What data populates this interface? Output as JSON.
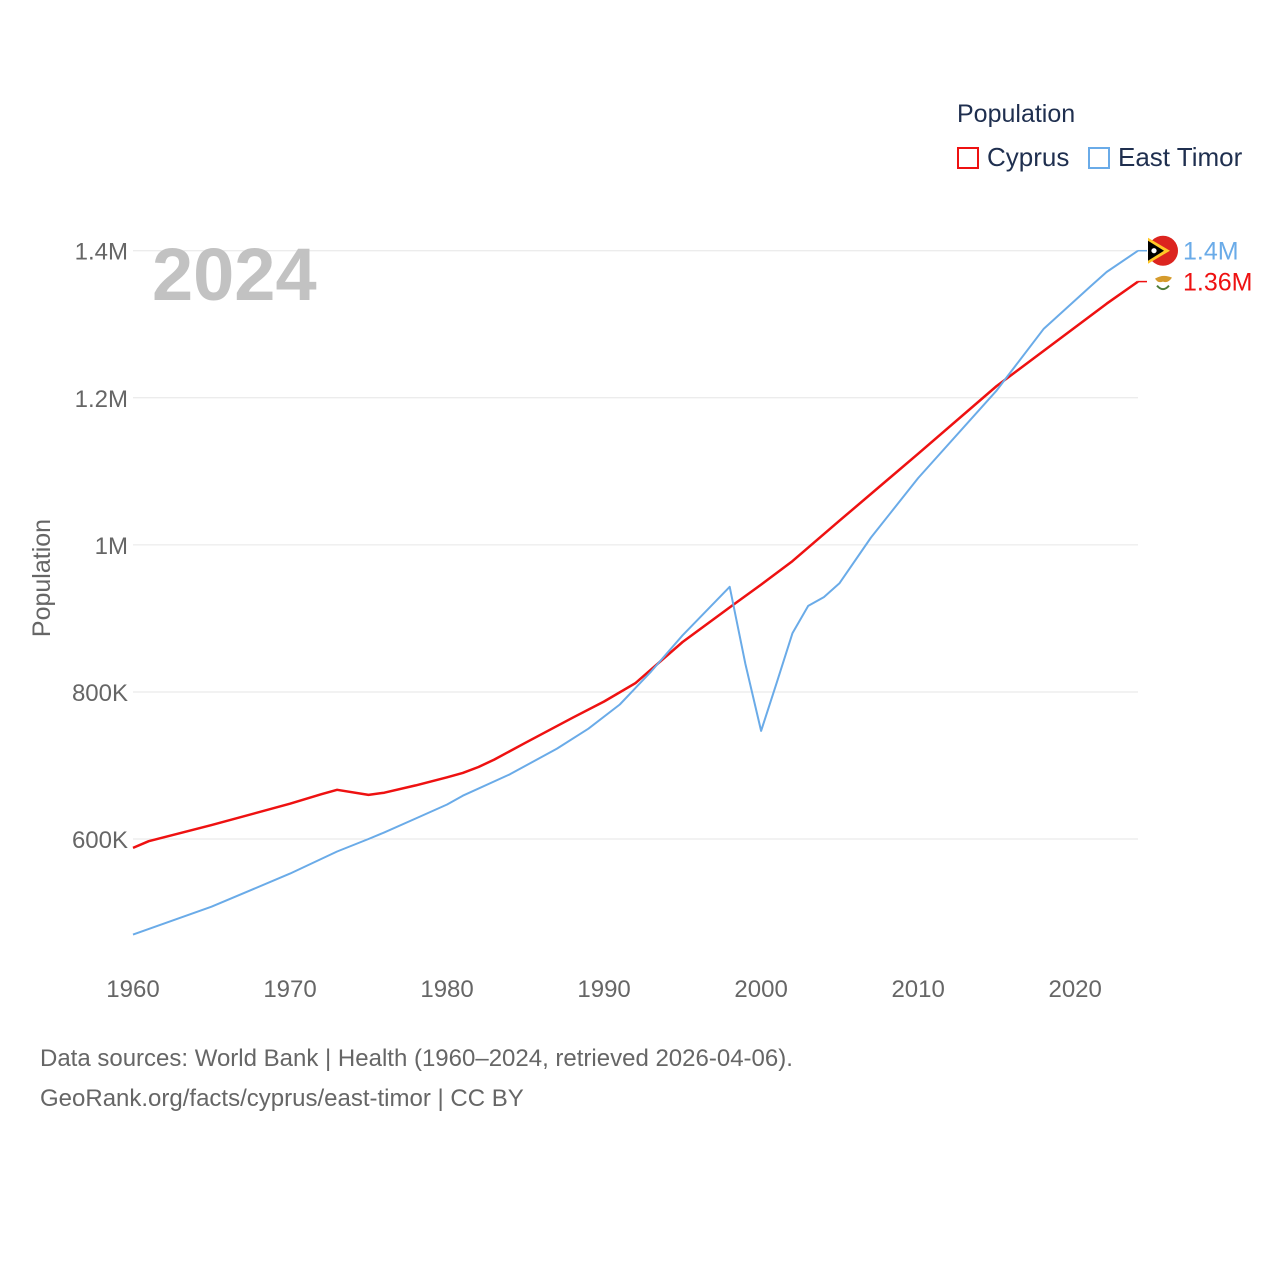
{
  "legend": {
    "title": "Population",
    "items": [
      {
        "label": "Cyprus",
        "color": "#ee1111"
      },
      {
        "label": "East Timor",
        "color": "#6aabe8"
      }
    ]
  },
  "year_label": "2024",
  "footer": {
    "line1": "Data sources: World Bank | Health (1960–2024, retrieved 2026-04-06).",
    "line2": "GeoRank.org/facts/cyprus/east-timor | CC BY"
  },
  "chart_data": {
    "type": "line",
    "title": "",
    "xlabel": "",
    "ylabel": "Population",
    "xlim": [
      1960,
      2024
    ],
    "ylim": [
      460000,
      1420000
    ],
    "x_ticks": [
      1960,
      1970,
      1980,
      1990,
      2000,
      2010,
      2020
    ],
    "y_ticks": [
      {
        "value": 600000,
        "label": "600K"
      },
      {
        "value": 800000,
        "label": "800K"
      },
      {
        "value": 1000000,
        "label": "1M"
      },
      {
        "value": 1200000,
        "label": "1.2M"
      },
      {
        "value": 1400000,
        "label": "1.4M"
      }
    ],
    "series": [
      {
        "name": "Cyprus",
        "color": "#ee1111",
        "end_label": "1.36M",
        "points": [
          [
            1960,
            588000
          ],
          [
            1961,
            597000
          ],
          [
            1965,
            619000
          ],
          [
            1970,
            648000
          ],
          [
            1972,
            661000
          ],
          [
            1973,
            667000
          ],
          [
            1975,
            660000
          ],
          [
            1976,
            663000
          ],
          [
            1978,
            673000
          ],
          [
            1980,
            684000
          ],
          [
            1981,
            690000
          ],
          [
            1982,
            698000
          ],
          [
            1983,
            708000
          ],
          [
            1985,
            731000
          ],
          [
            1988,
            765000
          ],
          [
            1990,
            787000
          ],
          [
            1992,
            812000
          ],
          [
            1995,
            868000
          ],
          [
            1998,
            915000
          ],
          [
            2000,
            946000
          ],
          [
            2002,
            978000
          ],
          [
            2005,
            1033000
          ],
          [
            2010,
            1124000
          ],
          [
            2015,
            1216000
          ],
          [
            2020,
            1296000
          ],
          [
            2022,
            1328000
          ],
          [
            2024,
            1358000
          ]
        ]
      },
      {
        "name": "East Timor",
        "color": "#6aabe8",
        "end_label": "1.4M",
        "points": [
          [
            1960,
            470000
          ],
          [
            1965,
            508000
          ],
          [
            1970,
            553000
          ],
          [
            1973,
            583000
          ],
          [
            1975,
            600000
          ],
          [
            1976,
            609000
          ],
          [
            1978,
            628000
          ],
          [
            1980,
            647000
          ],
          [
            1981,
            659000
          ],
          [
            1984,
            688000
          ],
          [
            1987,
            723000
          ],
          [
            1989,
            750000
          ],
          [
            1991,
            783000
          ],
          [
            1993,
            828000
          ],
          [
            1995,
            877000
          ],
          [
            1998,
            943000
          ],
          [
            1999,
            838000
          ],
          [
            2000,
            747000
          ],
          [
            2001,
            813000
          ],
          [
            2002,
            880000
          ],
          [
            2003,
            917000
          ],
          [
            2004,
            929000
          ],
          [
            2005,
            948000
          ],
          [
            2007,
            1010000
          ],
          [
            2010,
            1091000
          ],
          [
            2015,
            1210000
          ],
          [
            2018,
            1294000
          ],
          [
            2021,
            1352000
          ],
          [
            2022,
            1371000
          ],
          [
            2024,
            1400000
          ]
        ]
      }
    ]
  }
}
